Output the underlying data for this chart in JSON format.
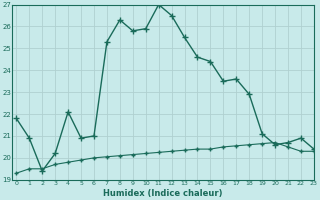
{
  "xlabel": "Humidex (Indice chaleur)",
  "bg_color": "#c8eaea",
  "grid_color": "#b0d0d0",
  "line_color": "#1a6b5a",
  "x_line1": [
    0,
    1,
    2,
    3,
    4,
    5,
    6,
    7,
    8,
    9,
    10,
    11,
    12,
    13,
    14,
    15,
    16,
    17,
    18,
    19,
    20,
    21,
    22,
    23
  ],
  "y_line1": [
    21.8,
    20.9,
    19.4,
    20.2,
    22.1,
    20.9,
    21.0,
    25.3,
    26.3,
    25.8,
    25.9,
    27.0,
    26.5,
    25.5,
    24.6,
    24.4,
    23.5,
    23.6,
    22.9,
    21.1,
    20.6,
    20.7,
    20.9,
    20.4
  ],
  "x_line2": [
    0,
    1,
    2,
    3,
    4,
    5,
    6,
    7,
    8,
    9,
    10,
    11,
    12,
    13,
    14,
    15,
    16,
    17,
    18,
    19,
    20,
    21,
    22,
    23
  ],
  "y_line2": [
    19.3,
    19.5,
    19.5,
    19.7,
    19.8,
    19.9,
    20.0,
    20.05,
    20.1,
    20.15,
    20.2,
    20.25,
    20.3,
    20.35,
    20.4,
    20.4,
    20.5,
    20.55,
    20.6,
    20.65,
    20.7,
    20.5,
    20.3,
    20.3
  ],
  "ylim": [
    19,
    27
  ],
  "xlim": [
    -0.3,
    23
  ],
  "yticks": [
    19,
    20,
    21,
    22,
    23,
    24,
    25,
    26,
    27
  ],
  "xticks": [
    0,
    1,
    2,
    3,
    4,
    5,
    6,
    7,
    8,
    9,
    10,
    11,
    12,
    13,
    14,
    15,
    16,
    17,
    18,
    19,
    20,
    21,
    22,
    23
  ]
}
